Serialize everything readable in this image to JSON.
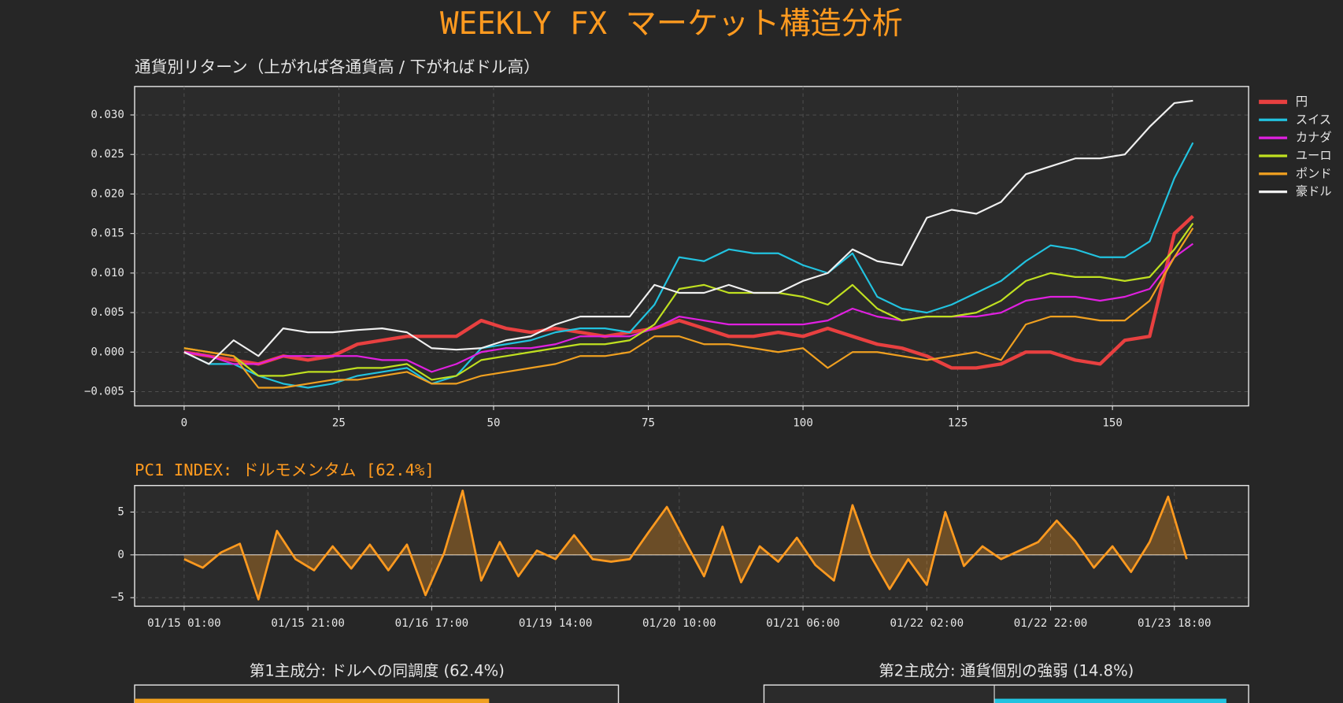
{
  "title": "WEEKLY FX マーケット構造分析",
  "chart_data": [
    {
      "type": "line",
      "title": "通貨別リターン（上がれば各通貨高 / 下がればドル高）",
      "x": [
        0,
        4,
        8,
        12,
        16,
        20,
        24,
        28,
        32,
        36,
        40,
        44,
        48,
        52,
        56,
        60,
        64,
        68,
        72,
        76,
        80,
        84,
        88,
        92,
        96,
        100,
        104,
        108,
        112,
        116,
        120,
        124,
        128,
        132,
        136,
        140,
        144,
        148,
        152,
        156,
        160,
        163
      ],
      "series": [
        {
          "name": "円",
          "color": "#e84040",
          "width": 4,
          "values": [
            0,
            -0.0005,
            -0.001,
            -0.0015,
            -0.0005,
            -0.001,
            -0.0005,
            0.001,
            0.0015,
            0.002,
            0.002,
            0.002,
            0.004,
            0.003,
            0.0025,
            0.003,
            0.0025,
            0.002,
            0.0025,
            0.003,
            0.004,
            0.003,
            0.002,
            0.002,
            0.0025,
            0.002,
            0.003,
            0.002,
            0.001,
            0.0005,
            -0.0005,
            -0.002,
            -0.002,
            -0.0015,
            0,
            0,
            -0.001,
            -0.0015,
            0.0015,
            0.002,
            0.015,
            0.0172
          ]
        },
        {
          "name": "スイス",
          "color": "#22c3e0",
          "width": 2,
          "values": [
            0,
            -0.0015,
            -0.0015,
            -0.003,
            -0.004,
            -0.0045,
            -0.004,
            -0.003,
            -0.0025,
            -0.002,
            -0.004,
            -0.003,
            0.0005,
            0.001,
            0.0015,
            0.0025,
            0.003,
            0.003,
            0.0025,
            0.006,
            0.012,
            0.0115,
            0.013,
            0.0125,
            0.0125,
            0.011,
            0.01,
            0.0125,
            0.007,
            0.0055,
            0.005,
            0.006,
            0.0075,
            0.009,
            0.0115,
            0.0135,
            0.013,
            0.012,
            0.012,
            0.014,
            0.022,
            0.0265
          ]
        },
        {
          "name": "カナダ",
          "color": "#e020e0",
          "width": 2,
          "values": [
            0,
            -0.0005,
            -0.0015,
            -0.0015,
            -0.0005,
            -0.0005,
            -0.0005,
            -0.0005,
            -0.001,
            -0.001,
            -0.0025,
            -0.0015,
            0,
            0.0005,
            0.0005,
            0.001,
            0.002,
            0.002,
            0.002,
            0.003,
            0.0045,
            0.004,
            0.0035,
            0.0035,
            0.0035,
            0.0035,
            0.004,
            0.0055,
            0.0045,
            0.004,
            0.0045,
            0.0045,
            0.0045,
            0.005,
            0.0065,
            0.007,
            0.007,
            0.0065,
            0.007,
            0.008,
            0.012,
            0.0137
          ]
        },
        {
          "name": "ユーロ",
          "color": "#c0e020",
          "width": 2,
          "values": [
            0.0005,
            0,
            -0.0005,
            -0.003,
            -0.003,
            -0.0025,
            -0.0025,
            -0.002,
            -0.002,
            -0.0015,
            -0.0035,
            -0.003,
            -0.001,
            -0.0005,
            0,
            0.0005,
            0.001,
            0.001,
            0.0015,
            0.0035,
            0.008,
            0.0085,
            0.0075,
            0.0075,
            0.0075,
            0.007,
            0.006,
            0.0085,
            0.0055,
            0.004,
            0.0045,
            0.0045,
            0.005,
            0.0065,
            0.009,
            0.01,
            0.0095,
            0.0095,
            0.009,
            0.0095,
            0.013,
            0.0163
          ]
        },
        {
          "name": "ポンド",
          "color": "#f0a020",
          "width": 2,
          "values": [
            0.0005,
            0,
            -0.0005,
            -0.0045,
            -0.0045,
            -0.004,
            -0.0035,
            -0.0035,
            -0.003,
            -0.0025,
            -0.004,
            -0.004,
            -0.003,
            -0.0025,
            -0.002,
            -0.0015,
            -0.0005,
            -0.0005,
            0,
            0.002,
            0.002,
            0.001,
            0.001,
            0.0005,
            0,
            0.0005,
            -0.002,
            0,
            0,
            -0.0005,
            -0.001,
            -0.0005,
            0,
            -0.001,
            0.0035,
            0.0045,
            0.0045,
            0.004,
            0.004,
            0.0065,
            0.012,
            0.0157
          ]
        },
        {
          "name": "豪ドル",
          "color": "#f0f0f0",
          "width": 2,
          "values": [
            0,
            -0.0015,
            0.0015,
            -0.0005,
            0.003,
            0.0025,
            0.0025,
            0.0028,
            0.003,
            0.0025,
            0.0005,
            0.0003,
            0.0005,
            0.0015,
            0.002,
            0.0035,
            0.0045,
            0.0045,
            0.0045,
            0.0085,
            0.0075,
            0.0075,
            0.0085,
            0.0075,
            0.0075,
            0.009,
            0.01,
            0.013,
            0.0115,
            0.011,
            0.017,
            0.018,
            0.0175,
            0.019,
            0.0225,
            0.0235,
            0.0245,
            0.0245,
            0.025,
            0.0285,
            0.0315,
            0.0318
          ]
        }
      ],
      "xlim": [
        -8,
        172
      ],
      "ylim": [
        -0.0068,
        0.0336
      ],
      "xticks": [
        0,
        25,
        50,
        75,
        100,
        125,
        150
      ],
      "yticks": [
        {
          "value": -0.005,
          "label": "−0.005"
        },
        {
          "value": 0,
          "label": "0.000"
        },
        {
          "value": 0.005,
          "label": "0.005"
        },
        {
          "value": 0.01,
          "label": "0.010"
        },
        {
          "value": 0.015,
          "label": "0.015"
        },
        {
          "value": 0.02,
          "label": "0.020"
        },
        {
          "value": 0.025,
          "label": "0.025"
        },
        {
          "value": 0.03,
          "label": "0.030"
        }
      ],
      "grid": true,
      "legend": "outside-right"
    },
    {
      "type": "area",
      "title": "PC1 INDEX: ドルモメンタム [62.4%]",
      "color": "#ff9a1f",
      "x": [
        0,
        3,
        6,
        9,
        12,
        15,
        18,
        21,
        24,
        27,
        30,
        33,
        36,
        39,
        42,
        45,
        48,
        51,
        54,
        57,
        60,
        63,
        66,
        69,
        72,
        75,
        78,
        81,
        84,
        87,
        90,
        93,
        96,
        99,
        102,
        105,
        108,
        111,
        114,
        117,
        120,
        123,
        126,
        129,
        132,
        135,
        138,
        141,
        144,
        147,
        150,
        153,
        156,
        159,
        162
      ],
      "values": [
        -0.5,
        -1.5,
        0.3,
        1.3,
        -5.2,
        2.8,
        -0.5,
        -1.8,
        1.0,
        -1.6,
        1.2,
        -1.8,
        1.2,
        -4.7,
        0.2,
        7.5,
        -3,
        1.5,
        -2.5,
        0.5,
        -0.5,
        2.3,
        -0.5,
        -0.8,
        -0.5,
        2.6,
        5.6,
        1.5,
        -2.5,
        3.3,
        -3.2,
        1.0,
        -0.8,
        2.0,
        -1.2,
        -3.0,
        5.8,
        -0.2,
        -4.0,
        -0.5,
        -3.5,
        5.0,
        -1.3,
        1.0,
        -0.5,
        0.5,
        1.5,
        4.0,
        1.6,
        -1.5,
        1.0,
        -2.0,
        1.5,
        6.8,
        -0.5
      ],
      "xlim": [
        -8,
        172
      ],
      "ylim": [
        -6,
        8.1
      ],
      "xticks": [
        {
          "value": 0,
          "label": "01/15 01:00"
        },
        {
          "value": 20,
          "label": "01/15 21:00"
        },
        {
          "value": 40,
          "label": "01/16 17:00"
        },
        {
          "value": 60,
          "label": "01/19 14:00"
        },
        {
          "value": 80,
          "label": "01/20 10:00"
        },
        {
          "value": 100,
          "label": "01/21 06:00"
        },
        {
          "value": 120,
          "label": "01/22 02:00"
        },
        {
          "value": 140,
          "label": "01/22 22:00"
        },
        {
          "value": 160,
          "label": "01/23 18:00"
        }
      ],
      "yticks": [
        {
          "value": -5,
          "label": "−5"
        },
        0,
        5
      ],
      "grid": true
    },
    {
      "type": "barh",
      "title": "第1主成分: ドルへの同調度 (62.4%)"
    },
    {
      "type": "barh",
      "title": "第2主成分: 通貨個別の強弱 (14.8%)"
    }
  ]
}
